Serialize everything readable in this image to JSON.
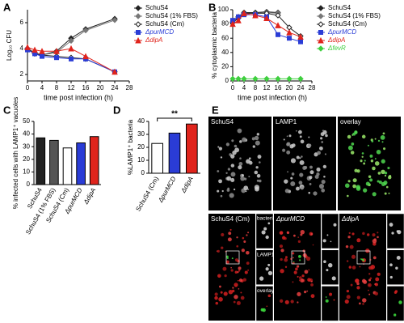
{
  "chart_data": [
    {
      "panel": "A",
      "type": "line",
      "x_label": "time post infection (h)",
      "y_label": "Log₁₀ CFU",
      "x": [
        0,
        2,
        4,
        8,
        12,
        16,
        24
      ],
      "xlim": [
        0,
        28
      ],
      "xticks": [
        0,
        4,
        8,
        12,
        16,
        20,
        24,
        28
      ],
      "ylim": [
        1.5,
        7
      ],
      "yticks": [
        2,
        4,
        6
      ],
      "series": [
        {
          "name": "SchuS4",
          "color": "#222222",
          "marker": "diamond",
          "values": [
            4.0,
            3.7,
            3.5,
            3.8,
            4.8,
            5.5,
            6.3
          ]
        },
        {
          "name": "SchuS4 (1% FBS)",
          "color": "#777777",
          "marker": "diamond",
          "values": [
            4.0,
            3.7,
            3.5,
            3.7,
            4.6,
            5.4,
            6.2
          ]
        },
        {
          "name": "SchuS4 (Cm)",
          "color": "#222222",
          "marker": "diamond-open",
          "values": [
            4.0,
            3.6,
            3.5,
            3.4,
            3.3,
            3.2,
            2.2
          ]
        },
        {
          "name": "ΔpurMCD",
          "color": "#2a3cd6",
          "marker": "square",
          "values": [
            3.9,
            3.6,
            3.4,
            3.3,
            3.2,
            3.2,
            2.2
          ]
        },
        {
          "name": "ΔdipA",
          "color": "#e0241c",
          "marker": "triangle",
          "values": [
            4.1,
            3.9,
            3.8,
            3.8,
            4.0,
            3.4,
            2.2
          ]
        }
      ]
    },
    {
      "panel": "B",
      "type": "line",
      "x_label": "time post infection (h)",
      "y_label": "% cytoplasmic bacteria",
      "x": [
        0,
        2,
        4,
        8,
        12,
        16,
        20,
        24
      ],
      "xlim": [
        0,
        28
      ],
      "xticks": [
        0,
        4,
        8,
        12,
        16,
        20,
        24,
        28
      ],
      "ylim": [
        0,
        100
      ],
      "yticks": [
        0,
        20,
        40,
        60,
        80,
        100
      ],
      "series": [
        {
          "name": "SchuS4",
          "color": "#222222",
          "marker": "diamond",
          "values": [
            82,
            90,
            96,
            96,
            97,
            96,
            null,
            null
          ]
        },
        {
          "name": "SchuS4 (1% FBS)",
          "color": "#777777",
          "marker": "diamond",
          "values": [
            83,
            89,
            95,
            95,
            96,
            95,
            null,
            null
          ]
        },
        {
          "name": "SchuS4 (Cm)",
          "color": "#222222",
          "marker": "diamond-open",
          "values": [
            82,
            88,
            95,
            95,
            95,
            92,
            75,
            63
          ]
        },
        {
          "name": "ΔpurMCD",
          "color": "#2a3cd6",
          "marker": "square",
          "values": [
            85,
            90,
            93,
            93,
            90,
            65,
            60,
            55
          ]
        },
        {
          "name": "ΔdipA",
          "color": "#e0241c",
          "marker": "triangle",
          "values": [
            80,
            85,
            95,
            92,
            88,
            78,
            68,
            62
          ]
        },
        {
          "name": "ΔfevR",
          "color": "#3fcf3f",
          "marker": "diamond",
          "values": [
            3,
            3,
            3,
            3,
            3,
            3,
            3,
            3
          ]
        }
      ]
    },
    {
      "panel": "C",
      "type": "bar",
      "y_label": "% infected cells with LAMP1⁺ vacuoles",
      "categories": [
        "SchuS4",
        "SchuS4 (1% FBS)",
        "SchuS4 (Cm)",
        "ΔpurMCD",
        "ΔdipA"
      ],
      "values": [
        37,
        35,
        29,
        33,
        38
      ],
      "colors": [
        "#222222",
        "#555555",
        "#ffffff",
        "#2a3cd6",
        "#e0241c"
      ],
      "ylim": [
        0,
        50
      ],
      "yticks": [
        0,
        10,
        20,
        30,
        40,
        50
      ]
    },
    {
      "panel": "D",
      "type": "bar",
      "y_label": "%LAMP1⁺ bacteria",
      "annotation": "**",
      "categories": [
        "SchuS4 (Cm)",
        "ΔpurMCD",
        "ΔdipA"
      ],
      "values": [
        23,
        31,
        38
      ],
      "colors": [
        "#ffffff",
        "#2a3cd6",
        "#e0241c"
      ],
      "ylim": [
        0,
        40
      ],
      "yticks": [
        0,
        10,
        20,
        30,
        40
      ]
    }
  ],
  "panel_e": {
    "panel": "E",
    "top_row": [
      "SchuS4",
      "LAMP1",
      "overlay"
    ],
    "bottom_row": [
      "SchuS4 (Cm)",
      "ΔpurMCD",
      "ΔdipA"
    ],
    "insets": [
      "bacteria",
      "LAMP1",
      "overlay"
    ]
  }
}
